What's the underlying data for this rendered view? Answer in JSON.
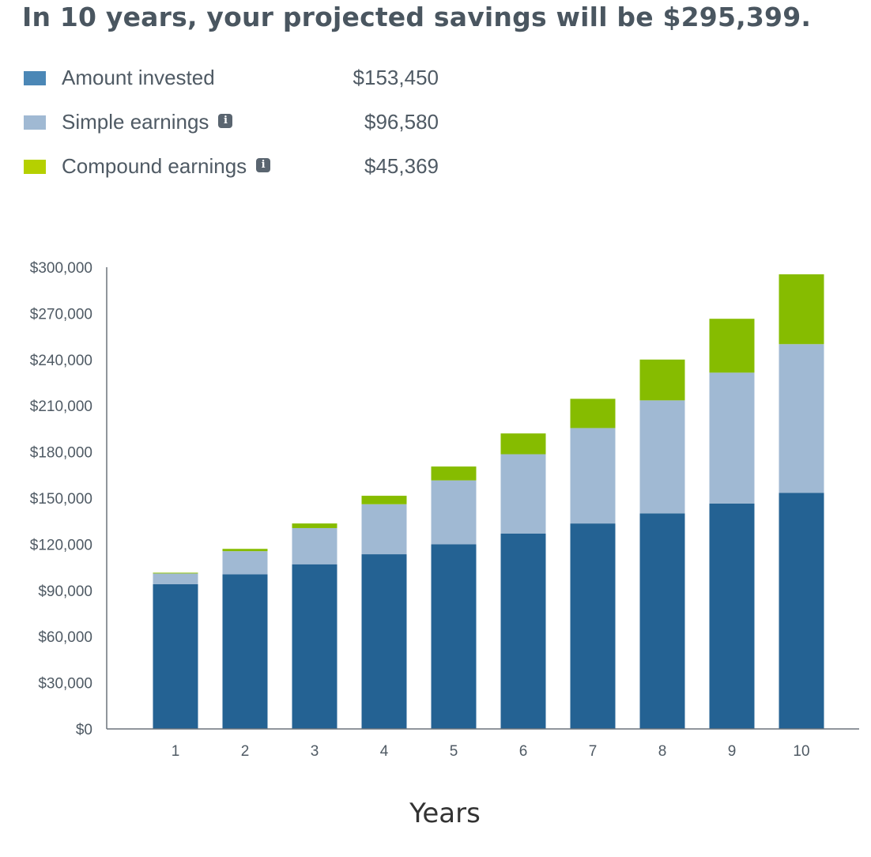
{
  "headline": "In 10 years, your projected savings will be $295,399.",
  "legend": [
    {
      "label": "Amount invested",
      "value": "$153,450",
      "color": "#246293",
      "swatch_color": "#4b87b6",
      "info": false
    },
    {
      "label": "Simple earnings",
      "value": "$96,580",
      "color": "#a0b9d3",
      "swatch_color": "#a0b9d3",
      "info": true,
      "info_icon": "info-icon"
    },
    {
      "label": "Compound earnings",
      "value": "$45,369",
      "color": "#86bc00",
      "swatch_color": "#b5d000",
      "info": true,
      "info_icon": "info-icon"
    }
  ],
  "chart_data": {
    "type": "bar",
    "stacked": true,
    "categories": [
      "1",
      "2",
      "3",
      "4",
      "5",
      "6",
      "7",
      "8",
      "9",
      "10"
    ],
    "series": [
      {
        "name": "Amount invested",
        "color": "#246293",
        "values": [
          94000,
          100500,
          107000,
          113500,
          120000,
          127000,
          133500,
          140000,
          146500,
          153450
        ]
      },
      {
        "name": "Simple earnings",
        "color": "#a0b9d3",
        "values": [
          7000,
          15000,
          23500,
          32500,
          41500,
          51500,
          62000,
          73500,
          85000,
          96580
        ]
      },
      {
        "name": "Compound earnings",
        "color": "#86bc00",
        "values": [
          500,
          1500,
          3000,
          5500,
          9000,
          13500,
          19000,
          26500,
          35000,
          45369
        ]
      }
    ],
    "y_ticks": [
      "$0",
      "$30,000",
      "$60,000",
      "$90,000",
      "$120,000",
      "$150,000",
      "$180,000",
      "$210,000",
      "$240,000",
      "$270,000",
      "$300,000"
    ],
    "ylim": [
      0,
      300000
    ],
    "xlabel": "Years",
    "ylabel": "",
    "grid": false,
    "legend_position": "top"
  }
}
